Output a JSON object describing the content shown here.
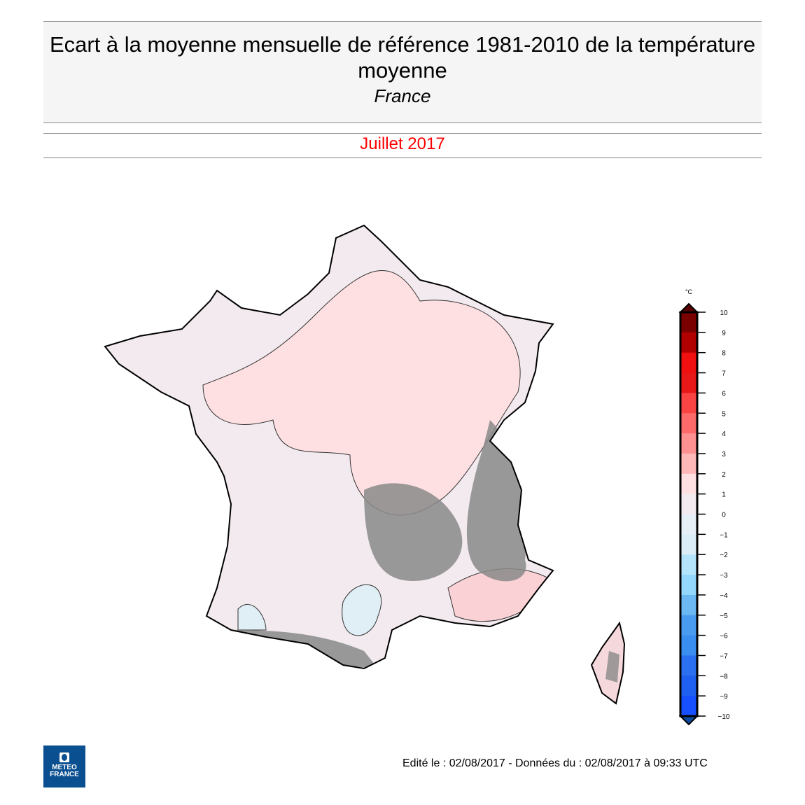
{
  "header": {
    "title": "Ecart à la moyenne mensuelle de référence 1981-2010 de la température moyenne",
    "subtitle": "France",
    "period": "Juillet 2017"
  },
  "legend": {
    "unit": "°C",
    "ticks": [
      "10",
      "9",
      "8",
      "7",
      "6",
      "5",
      "4",
      "3",
      "2",
      "1",
      "0",
      "−1",
      "−2",
      "−3",
      "−4",
      "−5",
      "−6",
      "−7",
      "−8",
      "−9",
      "−10"
    ],
    "colors": [
      "#7a0000",
      "#b00000",
      "#f01010",
      "#e81818",
      "#fa4444",
      "#fc6a6a",
      "#fd9090",
      "#ffb8b8",
      "#ffe0e2",
      "#f2eaee",
      "#e6eef6",
      "#dbeef7",
      "#b4e4fb",
      "#93d7fd",
      "#6cb8f3",
      "#4a9cf0",
      "#3a8ef0",
      "#2a70f0",
      "#1f60f0",
      "#1650ff"
    ],
    "over_color": "#5a0000",
    "under_color": "#0b4aa0"
  },
  "footer": {
    "text": "Edité le : 02/08/2017 - Données du : 02/08/2017 à 09:33 UTC"
  },
  "logo": {
    "line1": "METEO",
    "line2": "FRANCE"
  }
}
